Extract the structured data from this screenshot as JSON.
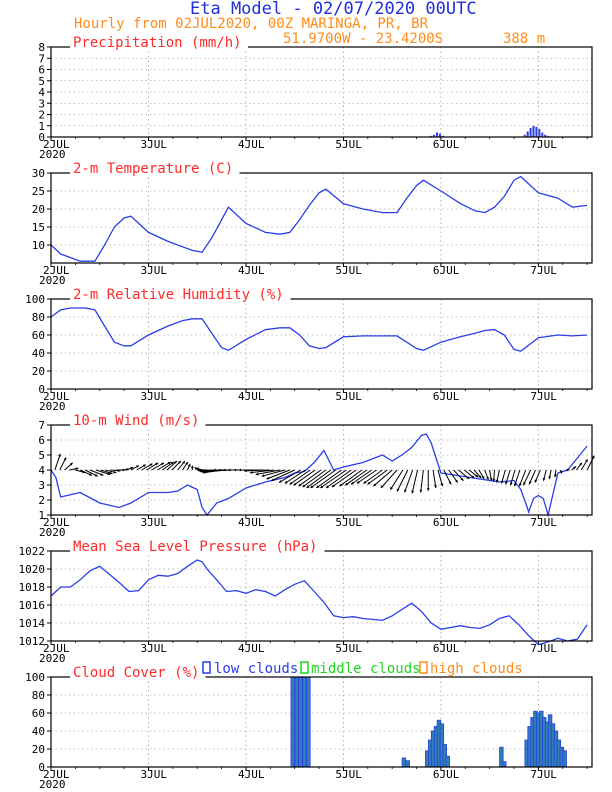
{
  "header": {
    "title": "Eta Model - 02/07/2020 00UTC",
    "line2": "Hourly from 02JUL2020, 00Z  MARINGA, PR, BR",
    "coords": "51.9700W - 23.4200S",
    "elevation": "388  m"
  },
  "colors": {
    "title": "#1f2fd6",
    "panel": "#ff2a2a",
    "orange": "#ff8c1a",
    "green": "#1ed61e",
    "series": "#2b3ee6",
    "cloudFill": "#2f7fb0"
  },
  "x_axis": {
    "ticks": [
      "2JUL",
      "3JUL",
      "4JUL",
      "5JUL",
      "6JUL",
      "7JUL"
    ],
    "year": "2020"
  },
  "chart_data": [
    {
      "type": "bar",
      "id": "precip",
      "title": "Precipitation (mm/h)",
      "ylim": [
        0,
        8
      ],
      "yticks": [
        "0",
        "1",
        "2",
        "3",
        "4",
        "5",
        "6",
        "7",
        "8"
      ],
      "x_days": [
        5.9,
        5.93,
        5.96,
        5.99,
        6.02,
        6.86,
        6.89,
        6.92,
        6.95,
        6.98,
        7.01,
        7.04,
        7.07,
        7.1,
        7.13
      ],
      "values": [
        0.1,
        0.2,
        0.4,
        0.3,
        0.1,
        0.2,
        0.5,
        0.8,
        1.0,
        0.9,
        0.7,
        0.4,
        0.2,
        0.1,
        0.05
      ]
    },
    {
      "type": "line",
      "id": "temp",
      "title": "2-m Temperature (C)",
      "ylim": [
        5,
        30
      ],
      "yticks": [
        "10",
        "15",
        "20",
        "25",
        "30"
      ],
      "x_days": [
        2.0,
        2.1,
        2.2,
        2.3,
        2.45,
        2.55,
        2.65,
        2.75,
        2.82,
        3.0,
        3.2,
        3.35,
        3.45,
        3.55,
        3.65,
        3.75,
        3.82,
        4.0,
        4.2,
        4.35,
        4.45,
        4.55,
        4.65,
        4.75,
        4.82,
        5.0,
        5.2,
        5.4,
        5.55,
        5.65,
        5.75,
        5.82,
        6.0,
        6.2,
        6.35,
        6.45,
        6.55,
        6.65,
        6.75,
        6.82,
        7.0,
        7.2,
        7.35,
        7.5
      ],
      "values": [
        10,
        7.5,
        6.5,
        5.5,
        5.5,
        10,
        15,
        17.5,
        18,
        13.5,
        11,
        9.5,
        8.5,
        8,
        12,
        17,
        20.5,
        16,
        13.5,
        13,
        13.5,
        17,
        21,
        24.5,
        25.5,
        21.5,
        20,
        19,
        19,
        23,
        26.5,
        28,
        25,
        21.5,
        19.5,
        19,
        20.5,
        23.5,
        28,
        29,
        24.5,
        23,
        20.5,
        21
      ]
    },
    {
      "type": "line",
      "id": "rh",
      "title": "2-m Relative Humidity (%)",
      "ylim": [
        0,
        100
      ],
      "yticks": [
        "0",
        "20",
        "40",
        "60",
        "80",
        "100"
      ],
      "x_days": [
        2.0,
        2.1,
        2.2,
        2.35,
        2.45,
        2.55,
        2.65,
        2.75,
        2.82,
        3.0,
        3.2,
        3.35,
        3.45,
        3.55,
        3.65,
        3.75,
        3.82,
        4.0,
        4.2,
        4.35,
        4.45,
        4.55,
        4.65,
        4.75,
        4.82,
        5.0,
        5.2,
        5.4,
        5.55,
        5.65,
        5.75,
        5.82,
        6.0,
        6.2,
        6.35,
        6.45,
        6.55,
        6.65,
        6.75,
        6.82,
        7.0,
        7.2,
        7.35,
        7.5
      ],
      "values": [
        80,
        88,
        90,
        90,
        88,
        70,
        52,
        48,
        48,
        60,
        70,
        76,
        78,
        78,
        62,
        46,
        43,
        55,
        66,
        68,
        68,
        60,
        48,
        45,
        46,
        58,
        59,
        59,
        59,
        52,
        45,
        43,
        52,
        58,
        62,
        65,
        66,
        60,
        44,
        42,
        57,
        60,
        59,
        60
      ]
    },
    {
      "type": "line",
      "id": "wind",
      "title": "10-m Wind (m/s)",
      "ylim": [
        1,
        7
      ],
      "yticks": [
        "1",
        "2",
        "3",
        "4",
        "5",
        "6",
        "7"
      ],
      "x_days": [
        2.0,
        2.05,
        2.1,
        2.3,
        2.5,
        2.7,
        2.82,
        3.0,
        3.2,
        3.3,
        3.4,
        3.5,
        3.55,
        3.6,
        3.7,
        3.82,
        4.0,
        4.2,
        4.4,
        4.5,
        4.6,
        4.7,
        4.8,
        4.9,
        5.0,
        5.2,
        5.4,
        5.5,
        5.6,
        5.7,
        5.8,
        5.85,
        5.9,
        6.0,
        6.2,
        6.4,
        6.6,
        6.75,
        6.82,
        6.88,
        6.9,
        6.95,
        7.0,
        7.05,
        7.1,
        7.2,
        7.3,
        7.4,
        7.5
      ],
      "values": [
        4.0,
        3.5,
        2.2,
        2.5,
        1.8,
        1.5,
        1.8,
        2.5,
        2.5,
        2.6,
        3.0,
        2.7,
        1.5,
        1.0,
        1.8,
        2.1,
        2.8,
        3.2,
        3.5,
        3.8,
        3.9,
        4.5,
        5.3,
        4.0,
        4.2,
        4.5,
        5.0,
        4.6,
        5.0,
        5.5,
        6.3,
        6.4,
        5.8,
        3.8,
        3.6,
        3.4,
        3.2,
        3.3,
        2.7,
        1.6,
        1.2,
        2.1,
        2.3,
        2.1,
        1.0,
        3.8,
        4.0,
        4.8,
        5.6
      ],
      "arrow_x_days": [
        2.04,
        2.09,
        2.14,
        2.19,
        2.25,
        2.3,
        2.35,
        2.4,
        2.46,
        2.51,
        2.56,
        2.61,
        2.67,
        2.72,
        2.77,
        2.82,
        2.88,
        2.93,
        2.98,
        3.03,
        3.09,
        3.14,
        3.19,
        3.24,
        3.3,
        3.35,
        3.4,
        3.45,
        3.51,
        3.56,
        3.61,
        3.66,
        3.72,
        3.77,
        3.82,
        3.87,
        3.93,
        3.98,
        4.03,
        4.08,
        4.14,
        4.19,
        4.24,
        4.29,
        4.35,
        4.4,
        4.45,
        4.5,
        4.56,
        4.61,
        4.66,
        4.71,
        4.77,
        4.82,
        4.87,
        4.92,
        4.98,
        5.03,
        5.08,
        5.13,
        5.19,
        5.24,
        5.29,
        5.34,
        5.4,
        5.45,
        5.5,
        5.55,
        5.61,
        5.66,
        5.71,
        5.76,
        5.82,
        5.87,
        5.92,
        5.97,
        6.03,
        6.08,
        6.13,
        6.18,
        6.24,
        6.29,
        6.34,
        6.39,
        6.45,
        6.5,
        6.55,
        6.6,
        6.66,
        6.71,
        6.76,
        6.81,
        6.87,
        6.92,
        6.97,
        7.02,
        7.08,
        7.13,
        7.18,
        7.23,
        7.29,
        7.34,
        7.39,
        7.44,
        7.5
      ],
      "arrow_u": [
        0.6,
        0.7,
        0.9,
        1.0,
        1.1,
        1.3,
        1.4,
        1.5,
        1.6,
        1.3,
        1.2,
        1.1,
        1.0,
        0.9,
        0.8,
        0.9,
        1.0,
        1.2,
        1.3,
        1.4,
        1.5,
        1.3,
        1.1,
        1.0,
        0.8,
        0.6,
        0.3,
        0.0,
        -0.4,
        -0.8,
        -1.2,
        -1.6,
        -2.0,
        -2.3,
        -2.6,
        -2.8,
        -2.9,
        -2.9,
        -2.9,
        -2.9,
        -2.9,
        -2.9,
        -2.8,
        -2.7,
        -2.7,
        -2.6,
        -2.6,
        -2.6,
        -2.4,
        -2.3,
        -2.3,
        -2.4,
        -2.5,
        -2.6,
        -2.7,
        -2.8,
        -2.8,
        -2.9,
        -2.8,
        -2.7,
        -2.5,
        -2.4,
        -2.3,
        -2.2,
        -2.1,
        -2.2,
        -2.1,
        -1.8,
        -1.4,
        -1.2,
        -0.9,
        -0.6,
        -0.3,
        0.0,
        0.3,
        0.5,
        0.8,
        1.0,
        1.1,
        1.2,
        1.1,
        1.0,
        0.8,
        0.6,
        0.4,
        0.2,
        -0.1,
        -0.3,
        -0.4,
        -0.5,
        -0.5,
        -0.6,
        -0.7,
        -0.8,
        -0.7,
        -0.6,
        -0.3,
        -0.2,
        -0.1,
        0.1,
        0.3,
        0.5,
        0.6,
        0.7,
        0.8
      ],
      "arrow_v": [
        1.8,
        1.4,
        0.8,
        0.2,
        -0.3,
        -0.6,
        -0.7,
        -0.6,
        -0.5,
        -0.4,
        -0.3,
        -0.1,
        0.0,
        0.1,
        0.3,
        0.5,
        0.6,
        0.7,
        0.8,
        0.8,
        0.9,
        0.9,
        1.0,
        1.0,
        1.0,
        0.9,
        0.7,
        0.5,
        0.3,
        0.2,
        0.0,
        -0.1,
        -0.2,
        -0.3,
        -0.2,
        -0.1,
        0.0,
        0.0,
        0.0,
        0.0,
        0.0,
        0.0,
        -0.1,
        -0.3,
        -0.5,
        -0.7,
        -1.0,
        -1.2,
        -1.4,
        -1.5,
        -1.6,
        -1.7,
        -1.8,
        -1.9,
        -2.0,
        -2.0,
        -2.0,
        -2.0,
        -2.0,
        -1.9,
        -1.8,
        -1.7,
        -1.6,
        -1.5,
        -1.5,
        -1.6,
        -1.8,
        -2.0,
        -2.2,
        -2.4,
        -2.5,
        -2.6,
        -2.5,
        -2.3,
        -2.0,
        -1.8,
        -1.6,
        -1.4,
        -1.2,
        -1.0,
        -0.9,
        -0.8,
        -0.9,
        -1.0,
        -1.1,
        -1.2,
        -1.3,
        -1.4,
        -1.5,
        -1.6,
        -1.7,
        -1.8,
        -1.8,
        -1.7,
        -1.6,
        -1.4,
        -1.2,
        -1.0,
        -0.8,
        -0.4,
        0.0,
        0.4,
        0.8,
        1.2,
        1.6
      ]
    },
    {
      "type": "line",
      "id": "mslp",
      "title": "Mean Sea Level Pressure (hPa)",
      "ylim": [
        1012,
        1022
      ],
      "yticks": [
        "1012",
        "1014",
        "1016",
        "1018",
        "1020",
        "1022"
      ],
      "x_days": [
        2.0,
        2.1,
        2.2,
        2.3,
        2.4,
        2.5,
        2.6,
        2.7,
        2.8,
        2.9,
        3.0,
        3.1,
        3.2,
        3.3,
        3.4,
        3.5,
        3.55,
        3.6,
        3.7,
        3.8,
        3.9,
        4.0,
        4.1,
        4.2,
        4.3,
        4.4,
        4.5,
        4.6,
        4.7,
        4.8,
        4.9,
        5.0,
        5.1,
        5.2,
        5.3,
        5.4,
        5.5,
        5.6,
        5.7,
        5.8,
        5.9,
        6.0,
        6.1,
        6.2,
        6.3,
        6.4,
        6.5,
        6.6,
        6.7,
        6.8,
        6.9,
        7.0,
        7.1,
        7.2,
        7.3,
        7.4,
        7.5
      ],
      "values": [
        1017.0,
        1018.0,
        1018.0,
        1018.8,
        1019.8,
        1020.3,
        1019.4,
        1018.5,
        1017.5,
        1017.6,
        1018.8,
        1019.3,
        1019.2,
        1019.5,
        1020.3,
        1021.0,
        1020.8,
        1020.0,
        1018.8,
        1017.5,
        1017.6,
        1017.3,
        1017.7,
        1017.5,
        1017.0,
        1017.7,
        1018.3,
        1018.7,
        1017.5,
        1016.3,
        1014.8,
        1014.6,
        1014.7,
        1014.5,
        1014.4,
        1014.3,
        1014.8,
        1015.5,
        1016.2,
        1015.3,
        1014.0,
        1013.3,
        1013.5,
        1013.7,
        1013.5,
        1013.4,
        1013.8,
        1014.5,
        1014.8,
        1013.8,
        1012.6,
        1011.6,
        1011.9,
        1012.3,
        1012.0,
        1012.2,
        1013.8
      ]
    },
    {
      "type": "bar",
      "id": "cloud",
      "title": "Cloud Cover (%)",
      "ylim": [
        0,
        100
      ],
      "yticks": [
        "0",
        "20",
        "40",
        "60",
        "80",
        "100"
      ],
      "legend": [
        "low clouds",
        "middle clouds",
        "high clouds"
      ],
      "series": [
        {
          "name": "low clouds",
          "x_days": [
            4.48,
            4.52,
            4.56,
            4.6,
            4.64,
            5.62,
            5.66,
            5.86,
            5.89,
            5.92,
            5.95,
            5.98,
            6.01,
            6.04,
            6.07,
            6.62,
            6.65,
            6.88,
            6.91,
            6.94,
            6.97,
            7.0,
            7.03,
            7.06,
            7.09,
            7.12,
            7.15,
            7.18,
            7.21,
            7.24,
            7.27
          ],
          "values": [
            100,
            100,
            100,
            100,
            100,
            10,
            7,
            18,
            30,
            40,
            45,
            52,
            48,
            25,
            12,
            22,
            6,
            30,
            45,
            55,
            62,
            60,
            62,
            55,
            50,
            58,
            48,
            40,
            30,
            22,
            18
          ]
        }
      ]
    }
  ]
}
